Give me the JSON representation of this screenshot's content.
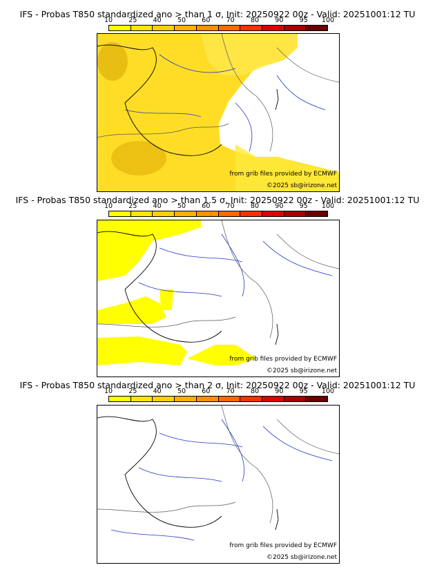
{
  "colorbar": {
    "ticks": [
      "10",
      "25",
      "40",
      "50",
      "60",
      "70",
      "80",
      "90",
      "95",
      "100"
    ],
    "colors": [
      "#ffff00",
      "#ffe600",
      "#ffd000",
      "#ffb000",
      "#ff9000",
      "#ff6a00",
      "#ff3000",
      "#e00000",
      "#a80000",
      "#6a0000"
    ]
  },
  "credits": {
    "source": "from grib files provided by ECMWF",
    "copyright": "©2025 sb@irizone.net"
  },
  "panels": [
    {
      "title": "IFS - Probas T850  standardized ano > than 1 σ, Init: 20250922 00z - Valid: 20251001:12 TU"
    },
    {
      "title": "IFS - Probas T850  standardized ano > than 1.5 σ, Init: 20250922 00z - Valid: 20251001:12 TU"
    },
    {
      "title": "IFS - Probas T850  standardized ano > than 2 σ, Init: 20250922 00z - Valid: 20251001:12 TU"
    }
  ]
}
